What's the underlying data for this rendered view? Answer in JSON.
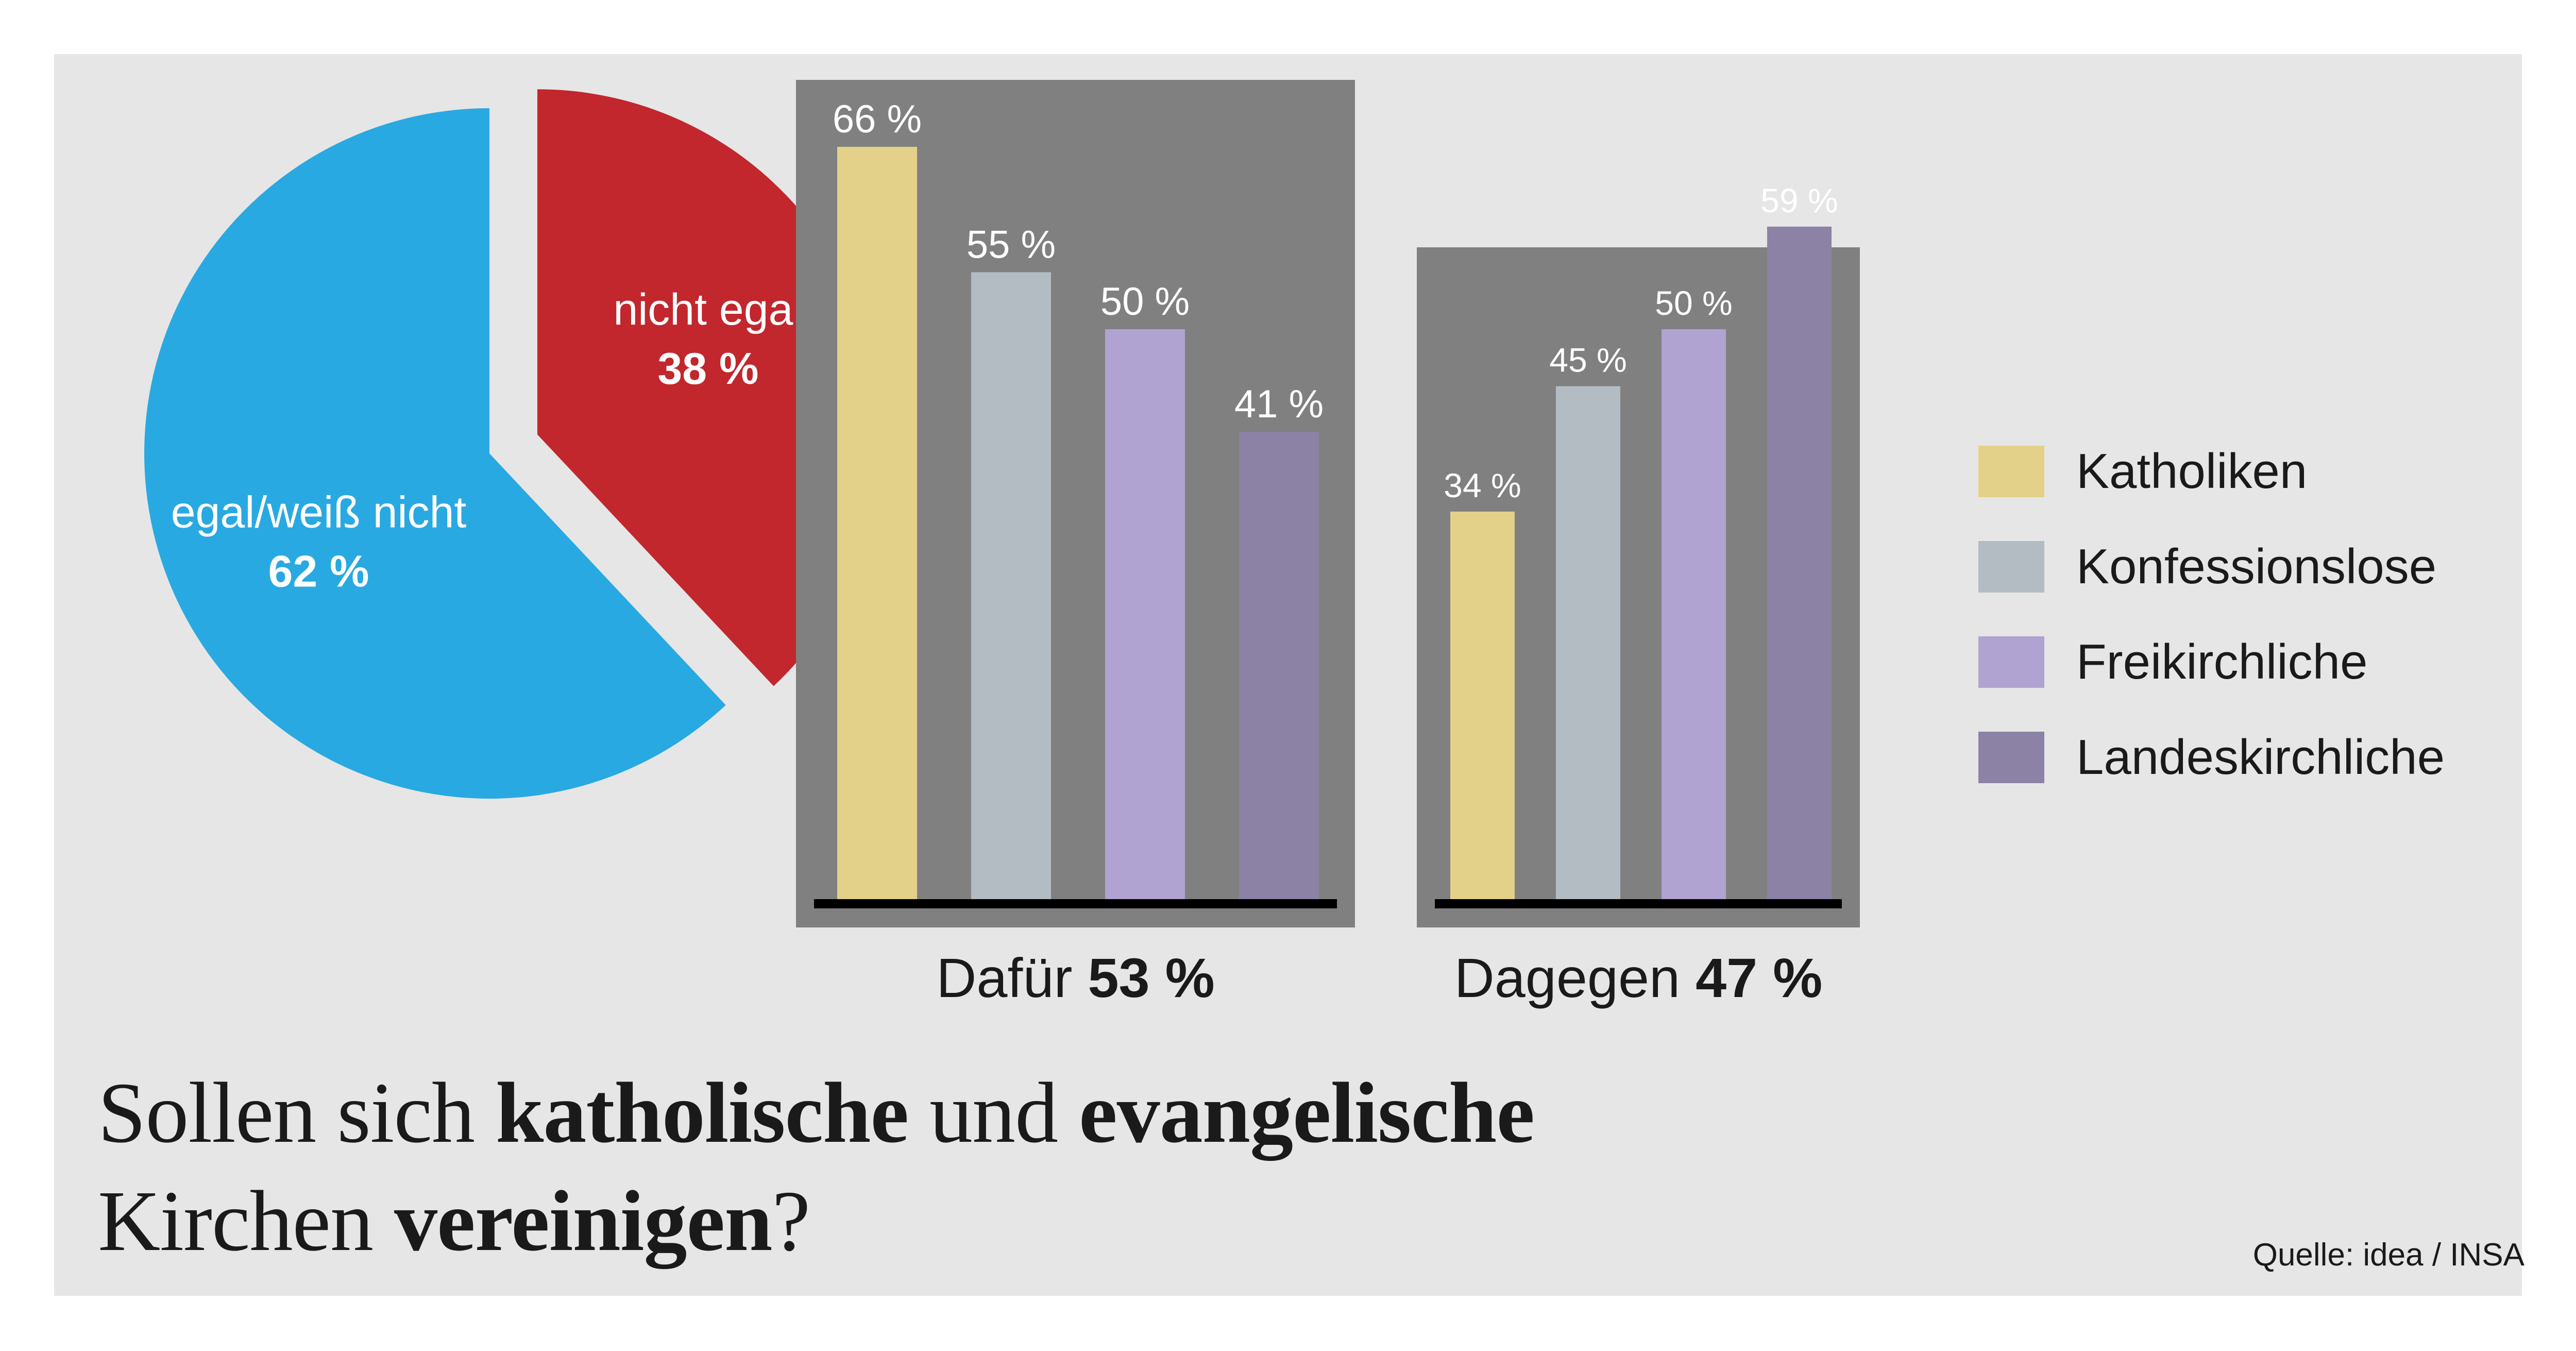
{
  "headline": {
    "w1": "Sollen sich ",
    "w2": "katholische",
    "w3": " und ",
    "w4": "evangelische",
    "w5": "Kirchen ",
    "w6": "vereinigen",
    "w7": "?"
  },
  "source": "Quelle: idea / INSA",
  "colors": {
    "background": "#ffffff",
    "panel": "#e6e6e6",
    "chart_box": "#808080",
    "baseline": "#000000",
    "pie_egal": "#29a9e1",
    "pie_nicht_egal": "#c1272d",
    "katholiken": "#e3d18a",
    "konfessionslose": "#b3bcc2",
    "freikirchliche": "#b0a3d1",
    "landeskirchliche": "#8b82a6"
  },
  "chart_data": [
    {
      "type": "pie",
      "slices": [
        {
          "label": "egal/weiß nicht",
          "value": 62,
          "value_label": "62 %",
          "color": "#29a9e1"
        },
        {
          "label": "nicht egal",
          "value": 38,
          "value_label": "38 %",
          "color": "#c1272d",
          "exploded": true
        }
      ]
    },
    {
      "type": "bar",
      "caption": "Dafür",
      "caption_value": "53 %",
      "categories": [
        "Katholiken",
        "Konfessionslose",
        "Freikirchliche",
        "Landeskirchliche"
      ],
      "values": [
        66,
        55,
        50,
        41
      ],
      "value_labels": [
        "66 %",
        "55 %",
        "50 %",
        "41 %"
      ],
      "ylim": [
        0,
        66
      ]
    },
    {
      "type": "bar",
      "caption": "Dagegen",
      "caption_value": "47 %",
      "categories": [
        "Katholiken",
        "Konfessionslose",
        "Freikirchliche",
        "Landeskirchliche"
      ],
      "values": [
        34,
        45,
        50,
        59
      ],
      "value_labels": [
        "34 %",
        "45 %",
        "50 %",
        "59 %"
      ],
      "ylim": [
        0,
        66
      ]
    }
  ],
  "legend": {
    "placement": "right",
    "items": [
      {
        "label": "Katholiken",
        "color": "#e3d18a"
      },
      {
        "label": "Konfessionslose",
        "color": "#b3bcc2"
      },
      {
        "label": "Freikirchliche",
        "color": "#b0a3d1"
      },
      {
        "label": "Landeskirchliche",
        "color": "#8b82a6"
      }
    ]
  }
}
